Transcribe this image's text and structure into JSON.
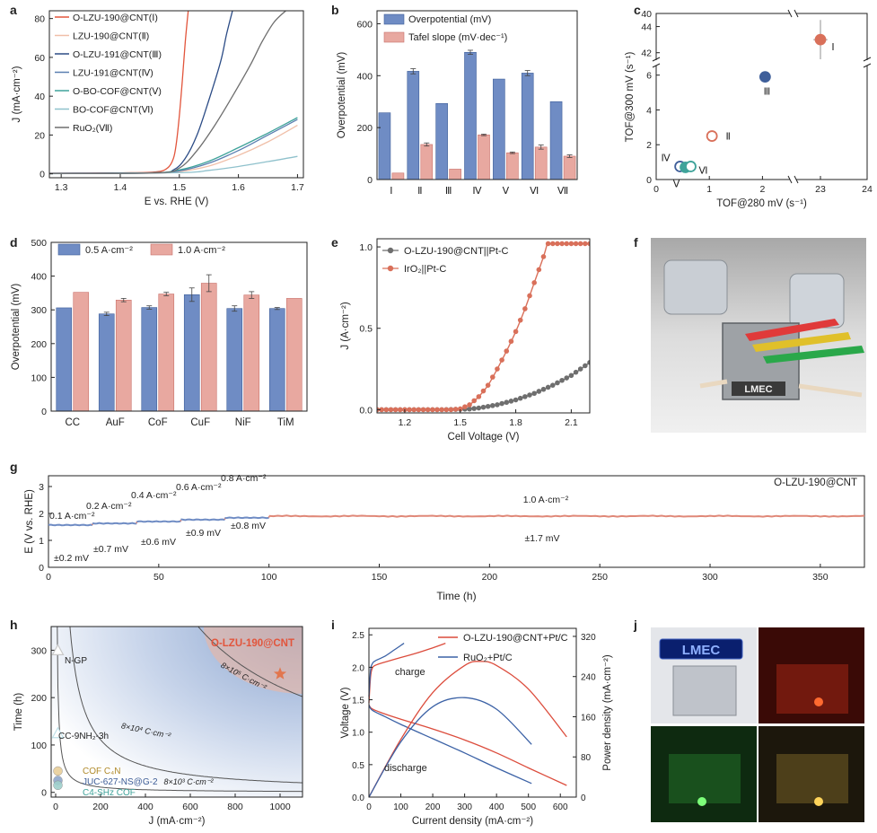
{
  "panel_labels": [
    "a",
    "b",
    "c",
    "d",
    "e",
    "f",
    "g",
    "h",
    "i",
    "j"
  ],
  "colors": {
    "axis": "#222222",
    "blue": "#6f8cc4",
    "blue_edge": "#3f5f9a",
    "pink": "#e8a8a0",
    "pink_edge": "#c9716a",
    "red": "#e2553c",
    "orange": "#d9705a",
    "teal": "#3fa39a",
    "navy": "#2c4c86",
    "grey": "#6e6e6e",
    "lgrey": "#9a9a9a",
    "line_i_blue": "#3c62a6",
    "line_i_red": "#dc4c3c"
  },
  "chart_data": [
    {
      "id": "a",
      "type": "line",
      "xlabel": "E vs. RHE (V)",
      "ylabel": "J (mA·cm⁻²)",
      "xlim": [
        1.28,
        1.71
      ],
      "ylim": [
        -2,
        84
      ],
      "xticks": [
        1.3,
        1.4,
        1.5,
        1.6,
        1.7
      ],
      "yticks": [
        0,
        20,
        40,
        60,
        80
      ],
      "legend": [
        "O-LZU-190@CNT(Ⅰ)",
        "LZU-190@CNT(Ⅱ)",
        "O-LZU-191@CNT(Ⅲ)",
        "LZU-191@CNT(Ⅳ)",
        "O-BO-COF@CNT(Ⅴ)",
        "BO-COF@CNT(Ⅵ)",
        "RuO₂(Ⅶ)"
      ],
      "series": [
        {
          "name": "O-LZU-190@CNT(Ⅰ)",
          "color": "#e2553c",
          "x": [
            1.28,
            1.4,
            1.46,
            1.48,
            1.49,
            1.495,
            1.5,
            1.505,
            1.51,
            1.515
          ],
          "y": [
            0.3,
            0.5,
            1.0,
            3.0,
            8,
            16,
            30,
            48,
            68,
            84
          ]
        },
        {
          "name": "LZU-190@CNT(Ⅱ)",
          "color": "#f0bfa8",
          "x": [
            1.28,
            1.45,
            1.5,
            1.55,
            1.6,
            1.65,
            1.7
          ],
          "y": [
            0.2,
            0.4,
            1.2,
            4.0,
            9.5,
            16.5,
            25.0
          ]
        },
        {
          "name": "O-LZU-191@CNT(Ⅲ)",
          "color": "#2c4c86",
          "x": [
            1.28,
            1.46,
            1.49,
            1.51,
            1.53,
            1.55,
            1.57,
            1.58,
            1.59
          ],
          "y": [
            0.3,
            0.6,
            2.0,
            8,
            20,
            38,
            58,
            72,
            84
          ]
        },
        {
          "name": "LZU-191@CNT(Ⅳ)",
          "color": "#5a7fb0",
          "x": [
            1.28,
            1.45,
            1.5,
            1.55,
            1.6,
            1.65,
            1.7
          ],
          "y": [
            0.2,
            0.4,
            1.5,
            5.5,
            12,
            20,
            28
          ]
        },
        {
          "name": "O-BO-COF@CNT(Ⅴ)",
          "color": "#3fa39a",
          "x": [
            1.28,
            1.45,
            1.5,
            1.55,
            1.6,
            1.65,
            1.7
          ],
          "y": [
            0.2,
            0.5,
            2.0,
            6.5,
            13.5,
            21,
            29
          ]
        },
        {
          "name": "BO-COF@CNT(Ⅵ)",
          "color": "#8fc1cc",
          "x": [
            1.28,
            1.5,
            1.55,
            1.6,
            1.65,
            1.7
          ],
          "y": [
            0.1,
            0.6,
            1.8,
            3.8,
            6.3,
            9.0
          ]
        },
        {
          "name": "RuO₂(Ⅶ)",
          "color": "#6e6e6e",
          "x": [
            1.28,
            1.46,
            1.5,
            1.53,
            1.56,
            1.59,
            1.62,
            1.64,
            1.66,
            1.68
          ],
          "y": [
            0.2,
            0.5,
            3.0,
            12,
            25,
            40,
            56,
            68,
            78,
            84
          ]
        }
      ]
    },
    {
      "id": "b",
      "type": "bar",
      "ylabel": "Overpotential (mV)",
      "ylim": [
        0,
        650
      ],
      "yticks": [
        0,
        200,
        400,
        600
      ],
      "categories": [
        "Ⅰ",
        "Ⅱ",
        "Ⅲ",
        "Ⅳ",
        "Ⅴ",
        "Ⅵ",
        "Ⅶ"
      ],
      "series": [
        {
          "name": "Overpotential (mV)",
          "color": "#6f8cc4",
          "values": [
            257,
            417,
            293,
            490,
            387,
            410,
            300
          ],
          "errors": [
            0,
            10,
            0,
            8,
            0,
            10,
            0
          ]
        },
        {
          "name": "Tafel slope (mV·dec⁻¹)",
          "color": "#e8a8a0",
          "values": [
            25,
            135,
            40,
            172,
            103,
            125,
            90
          ],
          "errors": [
            0,
            6,
            0,
            3,
            3,
            8,
            5
          ]
        }
      ]
    },
    {
      "id": "c",
      "type": "scatter",
      "xlabel": "TOF@280 mV (s⁻¹)",
      "ylabel": "TOF@300 mV (s⁻¹)",
      "xlim": [
        0,
        24
      ],
      "ylim": [
        0,
        45
      ],
      "x_break": [
        2.5,
        22.5
      ],
      "y_break": [
        6.5,
        41.5
      ],
      "xticks": [
        0,
        1,
        2,
        23,
        24
      ],
      "yticks": [
        0,
        2,
        4,
        6,
        42,
        44
      ],
      "yticks_upper": [
        40
      ],
      "points": [
        {
          "label": "Ⅰ",
          "x": 23.0,
          "y": 43.0,
          "xerr": 0.15,
          "yerr": 1.5,
          "color": "#d9705a",
          "filled": true
        },
        {
          "label": "Ⅱ",
          "x": 1.05,
          "y": 2.5,
          "xerr": 0.05,
          "yerr": 0.3,
          "color": "#d9705a",
          "filled": false
        },
        {
          "label": "Ⅲ",
          "x": 2.05,
          "y": 5.9,
          "xerr": 0.05,
          "yerr": 0.25,
          "color": "#3f5f9a",
          "filled": true
        },
        {
          "label": "Ⅳ",
          "x": 0.45,
          "y": 0.75,
          "xerr": 0.05,
          "yerr": 0.15,
          "color": "#3f5f9a",
          "filled": false
        },
        {
          "label": "Ⅴ",
          "x": 0.55,
          "y": 0.7,
          "xerr": 0.05,
          "yerr": 0.15,
          "color": "#3fa39a",
          "filled": true
        },
        {
          "label": "Ⅵ",
          "x": 0.65,
          "y": 0.75,
          "xerr": 0.05,
          "yerr": 0.15,
          "color": "#3fa39a",
          "filled": false
        }
      ]
    },
    {
      "id": "d",
      "type": "bar",
      "ylabel": "Overpotential (mV)",
      "ylim": [
        0,
        500
      ],
      "yticks": [
        0,
        100,
        200,
        300,
        400,
        500
      ],
      "categories": [
        "CC",
        "AuF",
        "CoF",
        "CuF",
        "NiF",
        "TiM"
      ],
      "series": [
        {
          "name": "0.5 A·cm⁻²",
          "color": "#6f8cc4",
          "values": [
            306,
            288,
            307,
            345,
            304,
            304
          ],
          "errors": [
            0,
            5,
            5,
            20,
            8,
            3
          ]
        },
        {
          "name": "1.0 A·cm⁻²",
          "color": "#e8a8a0",
          "values": [
            352,
            329,
            347,
            379,
            344,
            334
          ],
          "errors": [
            0,
            5,
            5,
            25,
            10,
            0
          ]
        }
      ]
    },
    {
      "id": "e",
      "type": "line",
      "xlabel": "Cell Voltage (V)",
      "ylabel": "J (A·cm⁻²)",
      "xlim": [
        1.05,
        2.2
      ],
      "ylim": [
        -0.02,
        1.05
      ],
      "xticks": [
        1.2,
        1.5,
        1.8,
        2.1
      ],
      "yticks": [
        0.0,
        0.5,
        1.0
      ],
      "legend": [
        "O-LZU-190@CNT||Pt-C",
        "IrO₂||Pt-C"
      ],
      "series": [
        {
          "name": "O-LZU-190@CNT||Pt-C",
          "color": "#6e6e6e",
          "x": [
            1.05,
            1.4,
            1.5,
            1.55,
            1.6,
            1.7,
            1.8,
            1.9,
            2.0,
            2.1,
            2.2
          ],
          "y": [
            0,
            0,
            0.002,
            0.004,
            0.01,
            0.03,
            0.06,
            0.1,
            0.15,
            0.21,
            0.29
          ]
        },
        {
          "name": "IrO₂||Pt-C",
          "color": "#d9705a",
          "x": [
            1.05,
            1.45,
            1.5,
            1.55,
            1.6,
            1.65,
            1.7,
            1.75,
            1.8,
            1.85,
            1.9,
            1.95,
            1.97
          ],
          "y": [
            0,
            0,
            0.005,
            0.03,
            0.08,
            0.15,
            0.25,
            0.36,
            0.48,
            0.62,
            0.78,
            0.94,
            1.02
          ]
        }
      ]
    },
    {
      "id": "g",
      "type": "line",
      "xlabel": "Time (h)",
      "ylabel": "E (V vs. RHE)",
      "xlim": [
        0,
        370
      ],
      "ylim": [
        0,
        3.4
      ],
      "xticks": [
        0,
        50,
        100,
        150,
        200,
        250,
        300,
        350
      ],
      "yticks": [
        0,
        1,
        2,
        3
      ],
      "legend_text": "O-LZU-190@CNT",
      "steps": [
        {
          "t0": 0,
          "t1": 20,
          "v": 1.57,
          "current": "0.1 A·cm⁻²",
          "drift": "±0.2 mV"
        },
        {
          "t0": 20,
          "t1": 40,
          "v": 1.63,
          "current": "0.2 A·cm⁻²",
          "drift": "±0.7 mV"
        },
        {
          "t0": 40,
          "t1": 60,
          "v": 1.7,
          "current": "0.4 A·cm⁻²",
          "drift": "±0.6 mV"
        },
        {
          "t0": 60,
          "t1": 80,
          "v": 1.77,
          "current": "0.6 A·cm⁻²",
          "drift": "±0.9 mV"
        },
        {
          "t0": 80,
          "t1": 100,
          "v": 1.84,
          "current": "0.8 A·cm⁻²",
          "drift": "±0.8 mV"
        },
        {
          "t0": 100,
          "t1": 370,
          "v": 1.9,
          "current": "1.0 A·cm⁻²",
          "drift": "±1.7 mV"
        }
      ]
    },
    {
      "id": "h",
      "type": "scatter",
      "xlabel": "J (mA·cm⁻²)",
      "ylabel": "Time (h)",
      "xlim": [
        -20,
        1100
      ],
      "ylim": [
        -10,
        350
      ],
      "xticks": [
        0,
        200,
        400,
        600,
        800,
        1000
      ],
      "yticks": [
        0,
        100,
        200,
        300
      ],
      "contours": [
        "8×10⁵ C·cm⁻²",
        "8×10⁴ C·cm⁻²",
        "8×10³ C·cm⁻²"
      ],
      "points": [
        {
          "label": "O-LZU-190@CNT",
          "x": 1000,
          "y": 250,
          "marker": "star",
          "color": "#e2764e"
        },
        {
          "label": "N-GP",
          "x": 10,
          "y": 300,
          "marker": "triangle",
          "color": "#c8c8c8"
        },
        {
          "label": "CC-9NH₂-3h",
          "x": 10,
          "y": 125,
          "marker": "triangle",
          "color": "#bfe0e8"
        },
        {
          "label": "COF C₄N",
          "x": 10,
          "y": 45,
          "marker": "circle",
          "color": "#e8cf9a"
        },
        {
          "label": "JUC-627-NS@G-2",
          "x": 10,
          "y": 25,
          "marker": "circle",
          "color": "#8fa8cc"
        },
        {
          "label": "C4-SHz COF",
          "x": 10,
          "y": 15,
          "marker": "circle",
          "color": "#9fd0cc"
        }
      ]
    },
    {
      "id": "i",
      "type": "line",
      "xlabel": "Current density (mA·cm⁻²)",
      "ylabel": "Voltage (V)",
      "y2label": "Power density (mA·cm⁻²)",
      "xlim": [
        0,
        650
      ],
      "ylim": [
        0,
        2.6
      ],
      "y2lim": [
        0,
        336
      ],
      "xticks": [
        0,
        100,
        200,
        300,
        400,
        500,
        600
      ],
      "yticks": [
        0.0,
        0.5,
        1.0,
        1.5,
        2.0,
        2.5
      ],
      "y2ticks": [
        0,
        80,
        160,
        240,
        320
      ],
      "legend": [
        "O-LZU-190@CNT+Pt/C",
        "RuO₂+Pt/C"
      ],
      "annotations": [
        "charge",
        "discharge"
      ],
      "series": [
        {
          "name": "O-LZU-190@CNT+Pt/C charge",
          "color": "#dc4c3c",
          "x": [
            0,
            5,
            10,
            20,
            50,
            100,
            150,
            200,
            240
          ],
          "y": [
            1.45,
            1.85,
            1.98,
            2.03,
            2.08,
            2.15,
            2.22,
            2.3,
            2.37
          ]
        },
        {
          "name": "RuO₂+Pt/C charge",
          "color": "#3c62a6",
          "x": [
            0,
            5,
            10,
            20,
            50,
            80,
            110
          ],
          "y": [
            1.55,
            1.95,
            2.05,
            2.1,
            2.17,
            2.27,
            2.37
          ]
        },
        {
          "name": "O-LZU-190@CNT+Pt/C discharge",
          "color": "#dc4c3c",
          "x": [
            0,
            10,
            50,
            100,
            200,
            300,
            400,
            500,
            620
          ],
          "y": [
            1.42,
            1.36,
            1.28,
            1.2,
            1.05,
            0.88,
            0.68,
            0.45,
            0.18
          ]
        },
        {
          "name": "RuO₂+Pt/C discharge",
          "color": "#3c62a6",
          "x": [
            0,
            10,
            50,
            100,
            200,
            300,
            400,
            510
          ],
          "y": [
            1.42,
            1.34,
            1.24,
            1.12,
            0.9,
            0.68,
            0.45,
            0.21
          ]
        },
        {
          "name": "O-LZU-190@CNT+Pt/C power",
          "axis": "y2",
          "color": "#dc4c3c",
          "x": [
            0,
            100,
            200,
            300,
            350,
            400,
            500,
            620
          ],
          "y": [
            0,
            115,
            208,
            262,
            270,
            262,
            215,
            120
          ]
        },
        {
          "name": "RuO₂+Pt/C power",
          "axis": "y2",
          "color": "#3c62a6",
          "x": [
            0,
            100,
            200,
            300,
            400,
            510
          ],
          "y": [
            0,
            110,
            180,
            198,
            175,
            105
          ]
        }
      ]
    }
  ],
  "photos": {
    "f_label": "LMEC",
    "j_label": "LMEC"
  }
}
